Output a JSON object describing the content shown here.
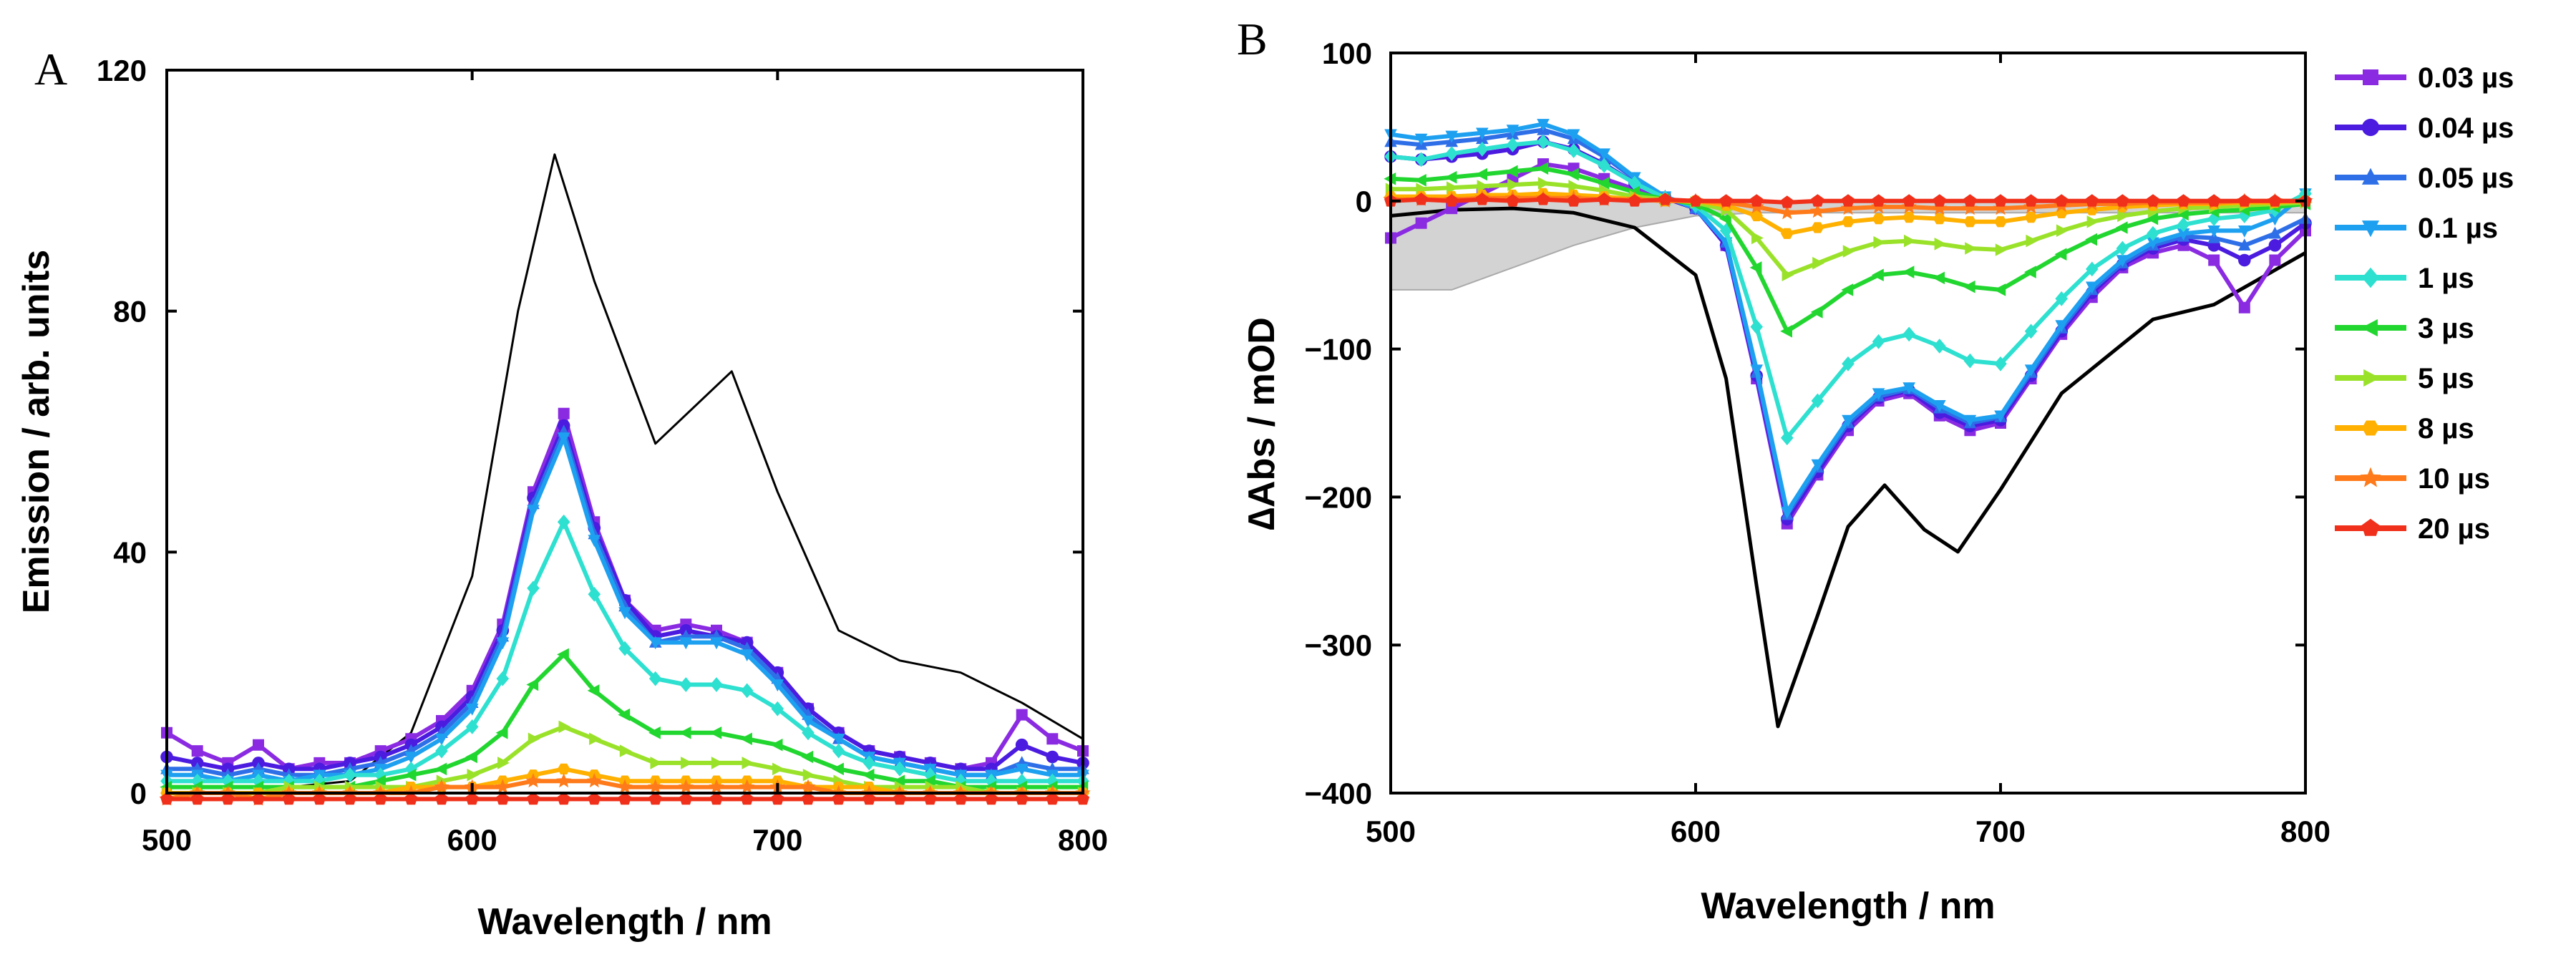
{
  "panels": {
    "a": {
      "letter": "A"
    },
    "b": {
      "letter": "B"
    }
  },
  "legend": {
    "entries": [
      {
        "label": "0.03 µs",
        "color": "#8A2BE2",
        "marker": "square"
      },
      {
        "label": "0.04 µs",
        "color": "#4B1BE0",
        "marker": "circle"
      },
      {
        "label": "0.05 µs",
        "color": "#2E6FE8",
        "marker": "triangle-up"
      },
      {
        "label": "0.1 µs",
        "color": "#1EA0F0",
        "marker": "triangle-down"
      },
      {
        "label": "1 µs",
        "color": "#2EE0D0",
        "marker": "diamond"
      },
      {
        "label": "3 µs",
        "color": "#22D630",
        "marker": "triangle-left"
      },
      {
        "label": "5 µs",
        "color": "#9AE22A",
        "marker": "triangle-right"
      },
      {
        "label": "8 µs",
        "color": "#FFB000",
        "marker": "hexagon"
      },
      {
        "label": "10 µs",
        "color": "#FF7A1A",
        "marker": "star"
      },
      {
        "label": "20 µs",
        "color": "#F0301A",
        "marker": "pentagon"
      }
    ]
  },
  "chart_data": [
    {
      "panel": "A",
      "type": "line",
      "xlabel": "Wavelength / nm",
      "ylabel": "Emission / arb. units",
      "xlim": [
        500,
        800
      ],
      "ylim": [
        0,
        120
      ],
      "xticks": [
        500,
        600,
        700,
        800
      ],
      "yticks": [
        0,
        40,
        80,
        120
      ],
      "reference": {
        "name": "steady-state emission",
        "color": "#000000",
        "x": [
          500,
          540,
          560,
          580,
          600,
          615,
          627,
          640,
          660,
          685,
          700,
          720,
          740,
          760,
          780,
          800
        ],
        "y": [
          1,
          1,
          2,
          10,
          36,
          80,
          106,
          85,
          58,
          70,
          50,
          27,
          22,
          20,
          15,
          9
        ]
      },
      "x": [
        500,
        510,
        520,
        530,
        540,
        550,
        560,
        570,
        580,
        590,
        600,
        610,
        620,
        630,
        640,
        650,
        660,
        670,
        680,
        690,
        700,
        710,
        720,
        730,
        740,
        750,
        760,
        770,
        780,
        790,
        800
      ],
      "series": [
        {
          "name": "0.03 µs",
          "values": [
            10,
            7,
            5,
            8,
            4,
            5,
            5,
            7,
            9,
            12,
            17,
            28,
            50,
            63,
            45,
            32,
            27,
            28,
            27,
            25,
            20,
            14,
            10,
            7,
            6,
            5,
            4,
            5,
            13,
            9,
            7
          ]
        },
        {
          "name": "0.04 µs",
          "values": [
            6,
            5,
            4,
            5,
            4,
            4,
            5,
            6,
            8,
            11,
            16,
            27,
            49,
            61,
            44,
            32,
            26,
            27,
            26,
            25,
            20,
            14,
            10,
            7,
            6,
            5,
            4,
            4,
            8,
            6,
            5
          ]
        },
        {
          "name": "0.05 µs",
          "values": [
            4,
            4,
            3,
            4,
            3,
            3,
            4,
            5,
            7,
            10,
            15,
            26,
            48,
            60,
            43,
            31,
            25,
            26,
            26,
            24,
            19,
            13,
            9,
            6,
            5,
            4,
            3,
            3,
            5,
            4,
            4
          ]
        },
        {
          "name": "0.1 µs",
          "values": [
            3,
            3,
            2,
            3,
            2,
            3,
            3,
            4,
            6,
            9,
            14,
            25,
            47,
            59,
            42,
            30,
            25,
            25,
            25,
            23,
            18,
            12,
            9,
            6,
            5,
            4,
            3,
            3,
            4,
            3,
            3
          ]
        },
        {
          "name": "1 µs",
          "values": [
            2,
            2,
            2,
            2,
            2,
            2,
            3,
            3,
            4,
            7,
            11,
            19,
            34,
            45,
            33,
            24,
            19,
            18,
            18,
            17,
            14,
            10,
            7,
            5,
            4,
            3,
            2,
            2,
            2,
            2,
            2
          ]
        },
        {
          "name": "3 µs",
          "values": [
            1,
            1,
            1,
            1,
            1,
            1,
            1,
            2,
            3,
            4,
            6,
            10,
            18,
            23,
            17,
            13,
            10,
            10,
            10,
            9,
            8,
            6,
            4,
            3,
            2,
            2,
            1,
            1,
            1,
            1,
            1
          ]
        },
        {
          "name": "5 µs",
          "values": [
            0,
            0,
            0,
            0,
            1,
            1,
            1,
            1,
            1,
            2,
            3,
            5,
            9,
            11,
            9,
            7,
            5,
            5,
            5,
            5,
            4,
            3,
            2,
            1,
            1,
            1,
            1,
            0,
            0,
            0,
            0
          ]
        },
        {
          "name": "8 µs",
          "values": [
            0,
            0,
            0,
            0,
            0,
            0,
            0,
            0,
            1,
            1,
            1,
            2,
            3,
            4,
            3,
            2,
            2,
            2,
            2,
            2,
            2,
            1,
            1,
            1,
            0,
            0,
            0,
            0,
            0,
            0,
            0
          ]
        },
        {
          "name": "10 µs",
          "values": [
            -1,
            0,
            0,
            -1,
            0,
            0,
            0,
            0,
            0,
            1,
            1,
            1,
            2,
            2,
            2,
            1,
            1,
            1,
            1,
            1,
            1,
            1,
            0,
            0,
            0,
            0,
            0,
            0,
            0,
            0,
            0
          ]
        },
        {
          "name": "20 µs",
          "values": [
            -1,
            -1,
            -1,
            -1,
            -1,
            -1,
            -1,
            -1,
            -1,
            -1,
            -1,
            -1,
            -1,
            -1,
            -1,
            -1,
            -1,
            -1,
            -1,
            -1,
            -1,
            -1,
            -1,
            -1,
            -1,
            -1,
            -1,
            -1,
            -1,
            -1,
            -1
          ]
        }
      ]
    },
    {
      "panel": "B",
      "type": "line",
      "xlabel": "Wavelength / nm",
      "ylabel": "∆Abs / mOD",
      "xlim": [
        500,
        800
      ],
      "ylim": [
        -400,
        100
      ],
      "xticks": [
        500,
        600,
        700,
        800
      ],
      "yticks": [
        -400,
        -300,
        -200,
        -100,
        0,
        100
      ],
      "reference": {
        "name": "inverted ground-state absorption",
        "color": "#000000",
        "x": [
          500,
          520,
          540,
          560,
          580,
          600,
          610,
          620,
          627,
          640,
          650,
          662,
          675,
          686,
          700,
          720,
          750,
          770,
          800
        ],
        "y": [
          -10,
          -6,
          -5,
          -8,
          -18,
          -50,
          -120,
          -260,
          -355,
          -280,
          -220,
          -192,
          -222,
          -237,
          -195,
          -130,
          -80,
          -70,
          -35
        ]
      },
      "shaded_region": {
        "name": "ground-state spectrum (grey)",
        "color": "#D3D3D3",
        "x": [
          500,
          520,
          540,
          560,
          580,
          600,
          620,
          650,
          700,
          750,
          800
        ],
        "y": [
          -60,
          -60,
          -45,
          -30,
          -18,
          -10,
          -8,
          -8,
          -8,
          -8,
          -8
        ]
      },
      "x": [
        500,
        510,
        520,
        530,
        540,
        550,
        560,
        570,
        580,
        590,
        600,
        610,
        620,
        630,
        640,
        650,
        660,
        670,
        680,
        690,
        700,
        710,
        720,
        730,
        740,
        750,
        760,
        770,
        780,
        790,
        800
      ],
      "series": [
        {
          "name": "0.03 µs",
          "values": [
            -25,
            -15,
            -5,
            5,
            15,
            25,
            22,
            15,
            8,
            2,
            -5,
            -30,
            -120,
            -218,
            -185,
            -155,
            -135,
            -130,
            -145,
            -155,
            -150,
            -120,
            -90,
            -65,
            -45,
            -35,
            -30,
            -40,
            -72,
            -40,
            -20
          ]
        },
        {
          "name": "0.04 µs",
          "values": [
            30,
            28,
            30,
            32,
            35,
            40,
            35,
            25,
            12,
            2,
            -5,
            -30,
            -118,
            -215,
            -183,
            -152,
            -133,
            -128,
            -143,
            -152,
            -148,
            -118,
            -88,
            -62,
            -43,
            -32,
            -26,
            -30,
            -40,
            -30,
            -15
          ]
        },
        {
          "name": "0.05 µs",
          "values": [
            40,
            38,
            40,
            42,
            45,
            48,
            42,
            30,
            15,
            3,
            -5,
            -28,
            -116,
            -212,
            -180,
            -150,
            -132,
            -127,
            -140,
            -150,
            -146,
            -116,
            -86,
            -60,
            -42,
            -30,
            -24,
            -25,
            -30,
            -22,
            -12
          ]
        },
        {
          "name": "0.1 µs",
          "values": [
            45,
            42,
            44,
            46,
            48,
            52,
            45,
            32,
            16,
            3,
            -5,
            -28,
            -114,
            -210,
            -178,
            -148,
            -130,
            -126,
            -138,
            -148,
            -145,
            -114,
            -84,
            -58,
            -40,
            -28,
            -22,
            -20,
            -20,
            -12,
            5
          ]
        },
        {
          "name": "1 µs",
          "values": [
            30,
            28,
            32,
            35,
            38,
            40,
            34,
            24,
            12,
            2,
            -3,
            -20,
            -85,
            -160,
            -135,
            -110,
            -95,
            -90,
            -98,
            -108,
            -110,
            -88,
            -66,
            -46,
            -32,
            -22,
            -16,
            -12,
            -10,
            -6,
            5
          ]
        },
        {
          "name": "3 µs",
          "values": [
            15,
            14,
            16,
            18,
            20,
            22,
            18,
            12,
            6,
            1,
            -2,
            -12,
            -45,
            -88,
            -75,
            -60,
            -50,
            -48,
            -52,
            -58,
            -60,
            -48,
            -36,
            -26,
            -18,
            -12,
            -9,
            -7,
            -6,
            -4,
            -2
          ]
        },
        {
          "name": "5 µs",
          "values": [
            8,
            8,
            9,
            10,
            11,
            12,
            10,
            7,
            3,
            1,
            -1,
            -6,
            -25,
            -50,
            -42,
            -34,
            -28,
            -27,
            -29,
            -32,
            -33,
            -27,
            -20,
            -14,
            -10,
            -7,
            -5,
            -4,
            -3,
            -2,
            -1
          ]
        },
        {
          "name": "8 µs",
          "values": [
            3,
            3,
            3,
            4,
            4,
            5,
            4,
            3,
            1,
            0,
            0,
            -3,
            -10,
            -22,
            -18,
            -14,
            -12,
            -11,
            -12,
            -14,
            -14,
            -11,
            -8,
            -6,
            -4,
            -3,
            -2,
            -2,
            -1,
            -1,
            0
          ]
        },
        {
          "name": "10 µs",
          "values": [
            1,
            1,
            1,
            2,
            2,
            2,
            2,
            1,
            1,
            0,
            0,
            -1,
            -4,
            -8,
            -7,
            -5,
            -4,
            -4,
            -5,
            -5,
            -5,
            -4,
            -3,
            -2,
            -2,
            -1,
            -1,
            -1,
            0,
            0,
            0
          ]
        },
        {
          "name": "20 µs",
          "values": [
            0,
            1,
            0,
            1,
            0,
            1,
            0,
            1,
            0,
            1,
            0,
            0,
            0,
            -1,
            0,
            0,
            0,
            0,
            0,
            0,
            0,
            0,
            0,
            0,
            0,
            0,
            0,
            0,
            0,
            0,
            0
          ]
        }
      ]
    }
  ]
}
